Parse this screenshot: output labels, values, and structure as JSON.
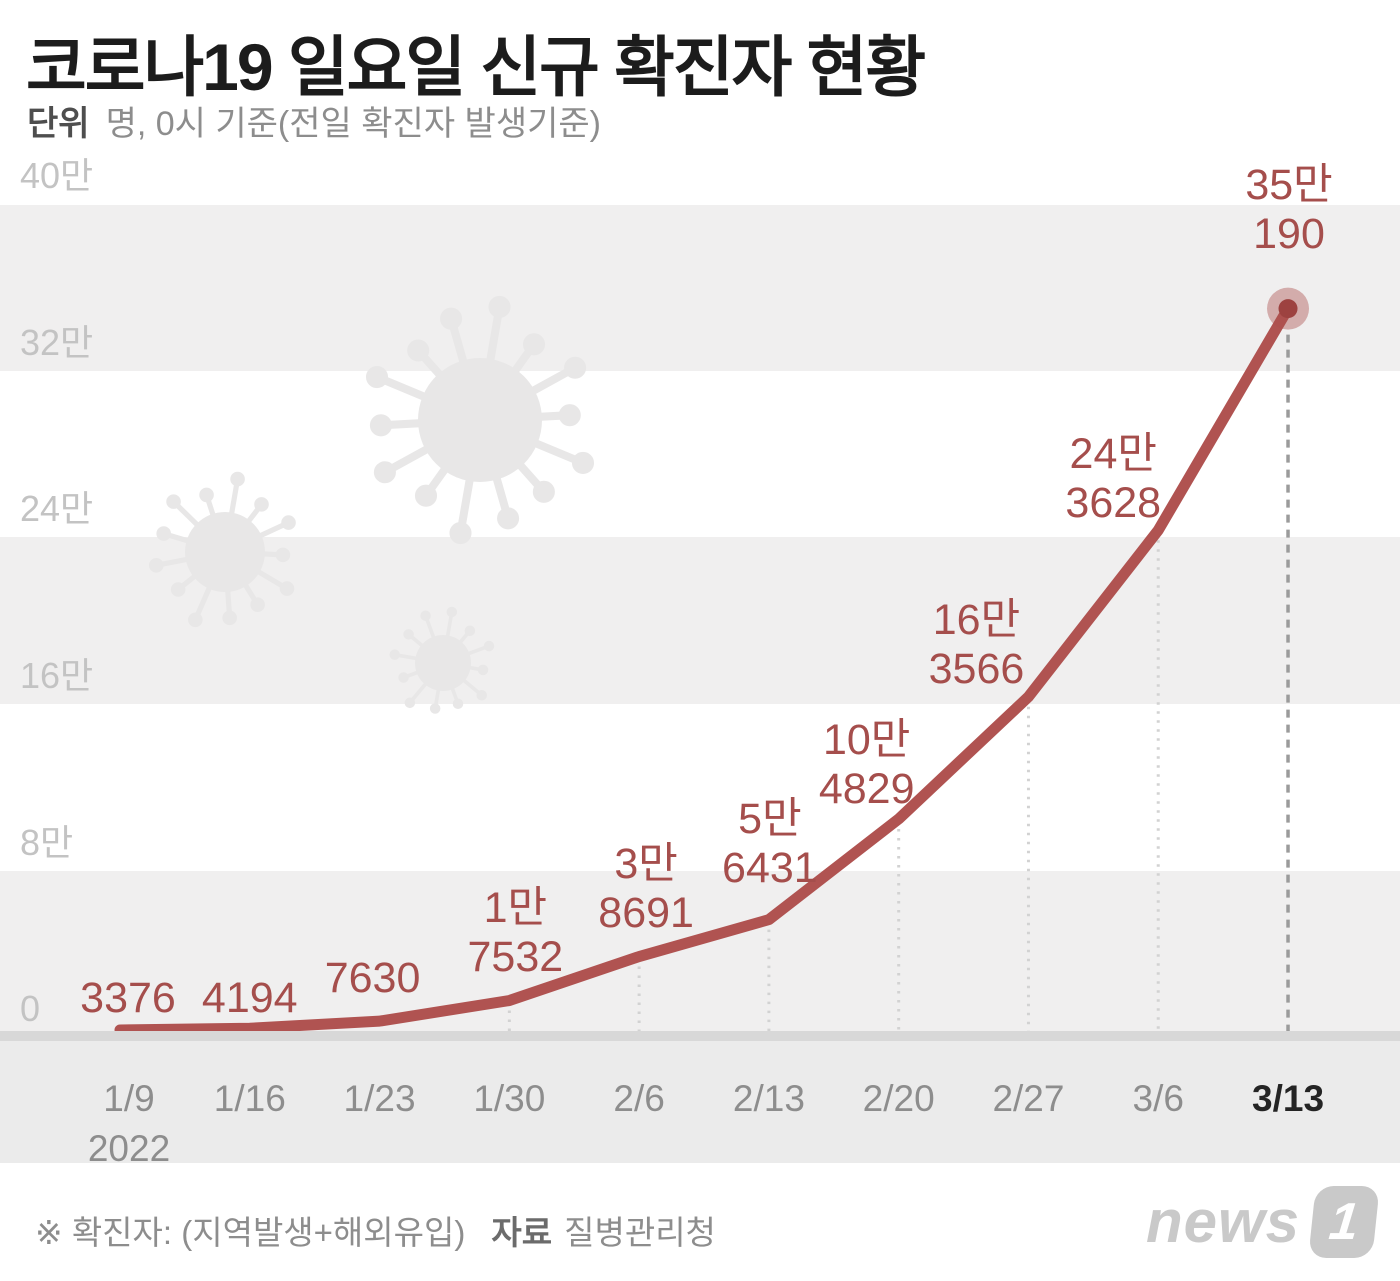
{
  "header": {
    "title": "코로나19 일요일 신규 확진자 현황",
    "unit_label": "단위",
    "unit_text": "명, 0시 기준(전일 확진자 발생기준)"
  },
  "chart_data": {
    "type": "line",
    "title": "코로나19 일요일 신규 확진자 현황",
    "x": [
      "1/9",
      "1/16",
      "1/23",
      "1/30",
      "2/6",
      "2/13",
      "2/20",
      "2/27",
      "3/6",
      "3/13"
    ],
    "x_year_note": "2022",
    "values": [
      3376,
      4194,
      7630,
      17532,
      38691,
      56431,
      104829,
      163566,
      243628,
      350190
    ],
    "point_labels": [
      [
        "3376"
      ],
      [
        "4194"
      ],
      [
        "7630"
      ],
      [
        "1만",
        "7532"
      ],
      [
        "3만",
        "8691"
      ],
      [
        "5만",
        "6431"
      ],
      [
        "10만",
        "4829"
      ],
      [
        "16만",
        "3566"
      ],
      [
        "24만",
        "3628"
      ],
      [
        "35만",
        "190"
      ]
    ],
    "yticks": [
      "40만",
      "32만",
      "24만",
      "16만",
      "8만",
      "0"
    ],
    "ylim": [
      0,
      400000
    ],
    "xlabel": "",
    "ylabel": "명",
    "grid": "banded-horizontal",
    "legend": "none",
    "line_color": "#b05351",
    "label_color": "#a54e4c",
    "end_dot_color": "#9d4240",
    "end_halo_color": "rgba(171,78,76,0.42)",
    "guide_line_color": "#d2d2d2",
    "end_guide_color": "#9b9b9b"
  },
  "footer": {
    "note": "※ 확진자: (지역발생+해외유입)",
    "source_label": "자료",
    "source_value": "질병관리청"
  },
  "logo": {
    "text": "news",
    "badge": "1"
  }
}
